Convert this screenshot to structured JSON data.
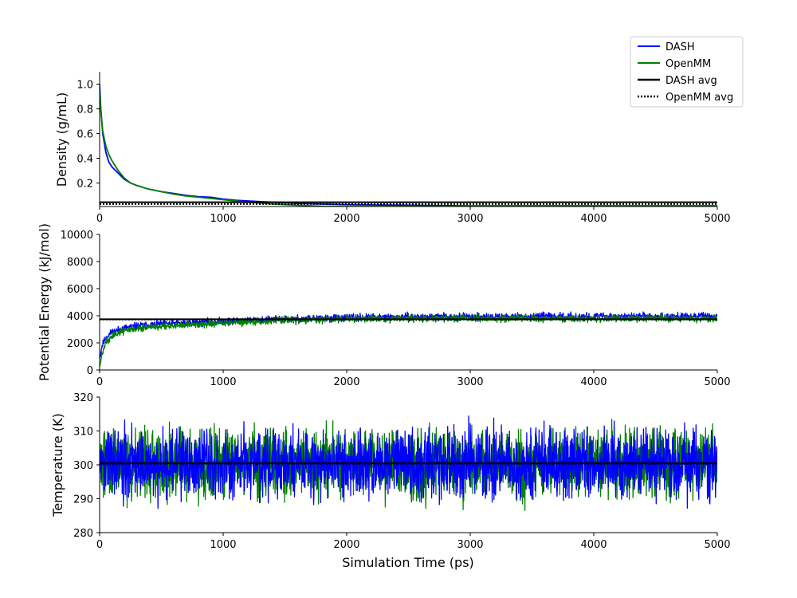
{
  "chart_data": [
    {
      "type": "line",
      "title": "",
      "xlabel": "",
      "ylabel": "Density (g/mL)",
      "xlim": [
        0,
        5000
      ],
      "ylim": [
        0.01,
        1.1
      ],
      "xticks": [
        "0",
        "1000",
        "2000",
        "3000",
        "4000",
        "5000"
      ],
      "yticks": [
        "0.2",
        "0.4",
        "0.6",
        "0.8",
        "1.0"
      ],
      "grid": false,
      "series": [
        {
          "name": "DASH",
          "color": "#0000ff",
          "x": [
            0,
            10,
            25,
            50,
            75,
            100,
            150,
            200,
            250,
            300,
            400,
            500,
            600,
            700,
            800,
            900,
            1000,
            1100,
            1200,
            1400,
            1600,
            1800,
            2000,
            2500,
            3000,
            3500,
            4000,
            4500,
            5000
          ],
          "y": [
            1.0,
            0.8,
            0.6,
            0.45,
            0.37,
            0.33,
            0.28,
            0.23,
            0.2,
            0.18,
            0.15,
            0.13,
            0.115,
            0.1,
            0.09,
            0.085,
            0.07,
            0.06,
            0.055,
            0.045,
            0.035,
            0.03,
            0.025,
            0.02,
            0.015,
            0.015,
            0.015,
            0.015,
            0.015
          ]
        },
        {
          "name": "OpenMM",
          "color": "#008000",
          "x": [
            0,
            10,
            25,
            50,
            75,
            100,
            150,
            200,
            250,
            300,
            400,
            500,
            600,
            700,
            800,
            900,
            1000,
            1100,
            1200,
            1400,
            1600,
            1800,
            2000,
            2500,
            3000,
            3500,
            4000,
            4500,
            5000
          ],
          "y": [
            0.95,
            0.78,
            0.62,
            0.5,
            0.43,
            0.38,
            0.3,
            0.24,
            0.2,
            0.18,
            0.15,
            0.13,
            0.11,
            0.095,
            0.085,
            0.075,
            0.065,
            0.055,
            0.045,
            0.03,
            0.02,
            0.012,
            0.01,
            0.01,
            0.01,
            0.01,
            0.01,
            0.01,
            0.01
          ]
        }
      ],
      "hlines": [
        {
          "name": "DASH avg",
          "y": 0.045,
          "color": "#000000",
          "style": "solid"
        },
        {
          "name": "OpenMM avg",
          "y": 0.03,
          "color": "#000000",
          "style": "dotted"
        }
      ],
      "legend": {
        "placement": "top-right",
        "entries": [
          {
            "label": "DASH",
            "color": "#0000ff",
            "style": "solid"
          },
          {
            "label": "OpenMM",
            "color": "#008000",
            "style": "solid"
          },
          {
            "label": "DASH avg",
            "color": "#000000",
            "style": "solid"
          },
          {
            "label": "OpenMM avg",
            "color": "#000000",
            "style": "dotted"
          }
        ]
      }
    },
    {
      "type": "line",
      "title": "",
      "xlabel": "",
      "ylabel": "Potential Energy (kJ/mol)",
      "xlim": [
        0,
        5000
      ],
      "ylim": [
        0,
        10000
      ],
      "xticks": [
        "0",
        "1000",
        "2000",
        "3000",
        "4000",
        "5000"
      ],
      "yticks": [
        "0",
        "2000",
        "4000",
        "6000",
        "8000",
        "10000"
      ],
      "grid": false,
      "noise": {
        "seed": 11,
        "amplitude": 130,
        "points": 1800
      },
      "series": [
        {
          "name": "DASH",
          "color": "#0000ff",
          "x": [
            0,
            20,
            50,
            100,
            200,
            300,
            500,
            800,
            1000,
            1500,
            2000,
            2500,
            3000,
            3500,
            4000,
            4500,
            5000
          ],
          "y": [
            900,
            1800,
            2400,
            2800,
            3100,
            3250,
            3400,
            3500,
            3600,
            3750,
            3850,
            3900,
            3920,
            3940,
            3950,
            3960,
            3970
          ]
        },
        {
          "name": "OpenMM",
          "color": "#008000",
          "x": [
            0,
            20,
            50,
            100,
            200,
            300,
            500,
            800,
            1000,
            1500,
            2000,
            2500,
            3000,
            3500,
            4000,
            4500,
            5000
          ],
          "y": [
            300,
            1200,
            2000,
            2500,
            2900,
            3050,
            3200,
            3350,
            3450,
            3650,
            3780,
            3800,
            3800,
            3800,
            3800,
            3800,
            3800
          ]
        }
      ],
      "hlines": [
        {
          "name": "DASH avg",
          "y": 3740,
          "color": "#000000",
          "style": "solid"
        },
        {
          "name": "OpenMM avg",
          "y": 3720,
          "color": "#000000",
          "style": "dotted"
        }
      ]
    },
    {
      "type": "line",
      "title": "",
      "xlabel": "Simulation Time (ps)",
      "ylabel": "Temperature (K)",
      "xlim": [
        0,
        5000
      ],
      "ylim": [
        280,
        320
      ],
      "xticks": [
        "0",
        "1000",
        "2000",
        "3000",
        "4000",
        "5000"
      ],
      "yticks": [
        "280",
        "290",
        "300",
        "310",
        "320"
      ],
      "grid": false,
      "noise": {
        "seed": 29,
        "amplitude": 5,
        "points": 2000
      },
      "series": [
        {
          "name": "OpenMM",
          "color": "#008000",
          "x": [
            0,
            5000
          ],
          "y": [
            300.5,
            300.5
          ]
        },
        {
          "name": "DASH",
          "color": "#0000ff",
          "x": [
            0,
            5000
          ],
          "y": [
            300.5,
            300.5
          ]
        }
      ],
      "hlines": [
        {
          "name": "DASH avg",
          "y": 300.5,
          "color": "#000000",
          "style": "solid"
        },
        {
          "name": "OpenMM avg",
          "y": 300.3,
          "color": "#000000",
          "style": "dotted"
        }
      ]
    }
  ]
}
